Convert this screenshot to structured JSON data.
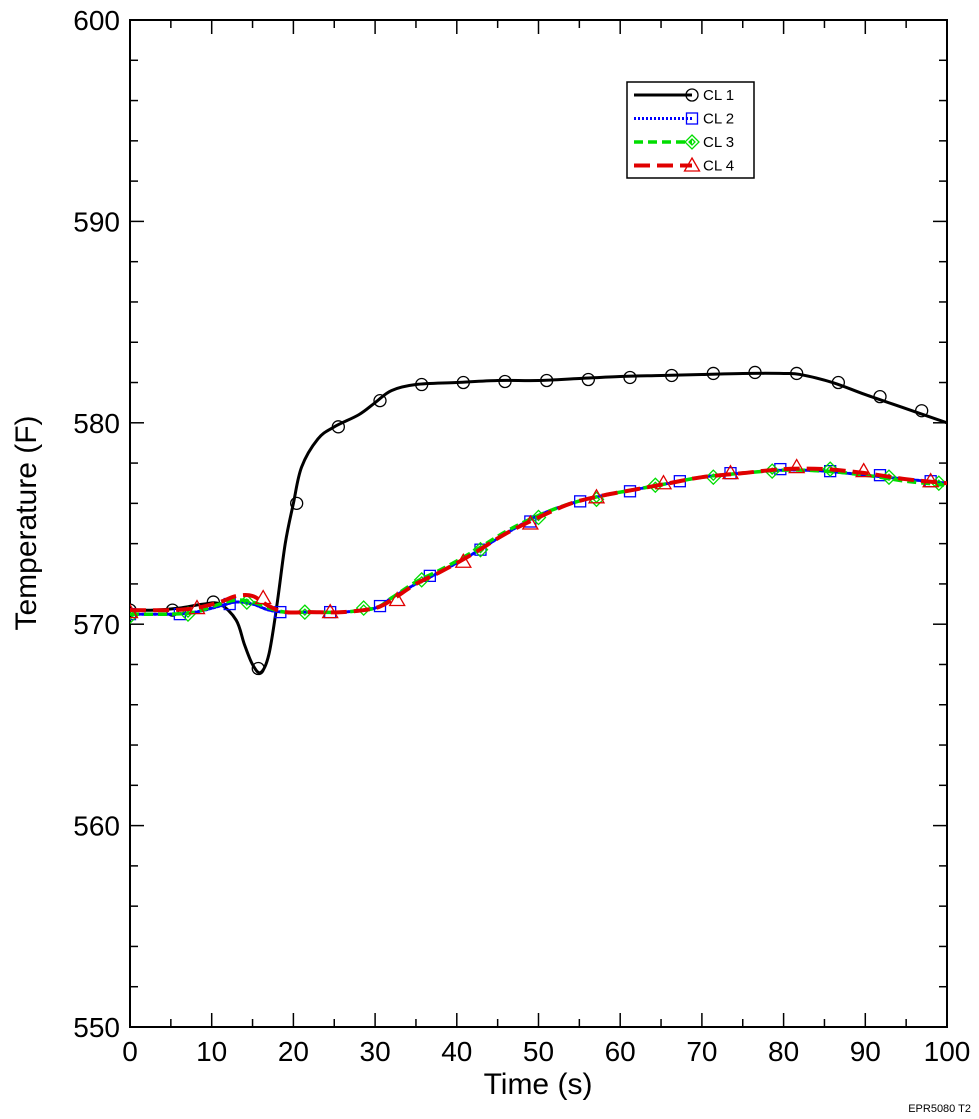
{
  "chart_data": {
    "type": "line",
    "title": "",
    "xlabel": "Time (s)",
    "ylabel": "Temperature (F)",
    "xlim": [
      0,
      100
    ],
    "ylim": [
      550,
      600
    ],
    "x_ticks": [
      0,
      10,
      20,
      30,
      40,
      50,
      60,
      70,
      80,
      90,
      100
    ],
    "y_ticks": [
      550,
      560,
      570,
      580,
      590,
      600
    ],
    "grid": false,
    "legend_position": "top-right",
    "footnote": "EPR5080 T2",
    "series": [
      {
        "name": "CL 1",
        "color": "#000000",
        "line_style": "solid",
        "marker": "circle",
        "points": [
          [
            0,
            570.7
          ],
          [
            3,
            570.7
          ],
          [
            6,
            570.8
          ],
          [
            9,
            571.0
          ],
          [
            11,
            571.0
          ],
          [
            13,
            570.2
          ],
          [
            14,
            569.0
          ],
          [
            15,
            568.0
          ],
          [
            16,
            567.6
          ],
          [
            17,
            568.5
          ],
          [
            18,
            571.0
          ],
          [
            19,
            574.0
          ],
          [
            20,
            576.0
          ],
          [
            21,
            577.8
          ],
          [
            23,
            579.2
          ],
          [
            25,
            579.8
          ],
          [
            28,
            580.4
          ],
          [
            30,
            581.0
          ],
          [
            32,
            581.6
          ],
          [
            35,
            581.9
          ],
          [
            40,
            582.0
          ],
          [
            45,
            582.1
          ],
          [
            50,
            582.1
          ],
          [
            55,
            582.2
          ],
          [
            60,
            582.3
          ],
          [
            65,
            582.35
          ],
          [
            70,
            582.4
          ],
          [
            75,
            582.45
          ],
          [
            80,
            582.45
          ],
          [
            82,
            582.4
          ],
          [
            86,
            582.0
          ],
          [
            90,
            581.4
          ],
          [
            95,
            580.7
          ],
          [
            100,
            580.0
          ]
        ],
        "marker_points": [
          [
            0,
            570.7
          ],
          [
            5.2,
            570.7
          ],
          [
            10.2,
            571.1
          ],
          [
            15.7,
            567.8
          ],
          [
            20.4,
            576.0
          ],
          [
            25.5,
            579.8
          ],
          [
            30.6,
            581.1
          ],
          [
            35.7,
            581.9
          ],
          [
            40.8,
            582.0
          ],
          [
            45.9,
            582.05
          ],
          [
            51.0,
            582.1
          ],
          [
            56.1,
            582.15
          ],
          [
            61.2,
            582.25
          ],
          [
            66.3,
            582.35
          ],
          [
            71.4,
            582.45
          ],
          [
            76.5,
            582.5
          ],
          [
            81.6,
            582.45
          ],
          [
            86.7,
            582.0
          ],
          [
            91.8,
            581.3
          ],
          [
            96.9,
            580.6
          ]
        ]
      },
      {
        "name": "CL 2",
        "color": "#0000ff",
        "line_style": "dotted",
        "marker": "square",
        "points": [
          [
            0,
            570.5
          ],
          [
            5,
            570.5
          ],
          [
            8,
            570.6
          ],
          [
            11,
            570.9
          ],
          [
            13,
            571.1
          ],
          [
            15,
            571.0
          ],
          [
            17,
            570.7
          ],
          [
            19,
            570.6
          ],
          [
            22,
            570.6
          ],
          [
            26,
            570.6
          ],
          [
            30,
            570.8
          ],
          [
            32,
            571.3
          ],
          [
            35,
            572.0
          ],
          [
            38,
            572.6
          ],
          [
            42,
            573.5
          ],
          [
            46,
            574.5
          ],
          [
            50,
            575.4
          ],
          [
            54,
            576.0
          ],
          [
            58,
            576.4
          ],
          [
            62,
            576.7
          ],
          [
            66,
            577.0
          ],
          [
            70,
            577.3
          ],
          [
            75,
            577.5
          ],
          [
            80,
            577.65
          ],
          [
            85,
            577.6
          ],
          [
            90,
            577.4
          ],
          [
            95,
            577.2
          ],
          [
            100,
            577.0
          ]
        ],
        "marker_points": [
          [
            0,
            570.5
          ],
          [
            6.1,
            570.5
          ],
          [
            12.2,
            571.0
          ],
          [
            18.4,
            570.6
          ],
          [
            24.5,
            570.6
          ],
          [
            30.6,
            570.9
          ],
          [
            36.7,
            572.4
          ],
          [
            42.9,
            573.7
          ],
          [
            49.0,
            575.1
          ],
          [
            55.1,
            576.1
          ],
          [
            61.2,
            576.6
          ],
          [
            67.3,
            577.1
          ],
          [
            73.5,
            577.5
          ],
          [
            79.6,
            577.7
          ],
          [
            85.7,
            577.6
          ],
          [
            91.8,
            577.4
          ],
          [
            98.0,
            577.1
          ]
        ]
      },
      {
        "name": "CL 3",
        "color": "#00dd00",
        "line_style": "dashed",
        "marker": "diamond",
        "points": [
          [
            0,
            570.5
          ],
          [
            5,
            570.5
          ],
          [
            8,
            570.6
          ],
          [
            11,
            571.0
          ],
          [
            13,
            571.2
          ],
          [
            15,
            571.1
          ],
          [
            17,
            570.8
          ],
          [
            19,
            570.6
          ],
          [
            22,
            570.6
          ],
          [
            26,
            570.6
          ],
          [
            30,
            570.8
          ],
          [
            32,
            571.3
          ],
          [
            35,
            572.1
          ],
          [
            38,
            572.7
          ],
          [
            42,
            573.6
          ],
          [
            46,
            574.6
          ],
          [
            50,
            575.4
          ],
          [
            54,
            576.0
          ],
          [
            58,
            576.4
          ],
          [
            62,
            576.7
          ],
          [
            66,
            577.0
          ],
          [
            70,
            577.3
          ],
          [
            75,
            577.5
          ],
          [
            80,
            577.65
          ],
          [
            85,
            577.6
          ],
          [
            90,
            577.4
          ],
          [
            95,
            577.1
          ],
          [
            100,
            576.9
          ]
        ],
        "marker_points": [
          [
            0,
            570.4
          ],
          [
            7.1,
            570.5
          ],
          [
            14.3,
            571.1
          ],
          [
            21.4,
            570.6
          ],
          [
            28.6,
            570.8
          ],
          [
            35.7,
            572.2
          ],
          [
            42.9,
            573.7
          ],
          [
            50.0,
            575.3
          ],
          [
            57.1,
            576.2
          ],
          [
            64.3,
            576.9
          ],
          [
            71.4,
            577.3
          ],
          [
            78.6,
            577.6
          ],
          [
            85.7,
            577.7
          ],
          [
            92.9,
            577.3
          ],
          [
            99.0,
            577.0
          ]
        ]
      },
      {
        "name": "CL 4",
        "color": "#e00000",
        "line_style": "long-dashed",
        "marker": "triangle",
        "points": [
          [
            0,
            570.7
          ],
          [
            5,
            570.7
          ],
          [
            8,
            570.8
          ],
          [
            11,
            571.1
          ],
          [
            13,
            571.4
          ],
          [
            15,
            571.4
          ],
          [
            17,
            570.9
          ],
          [
            19,
            570.6
          ],
          [
            22,
            570.6
          ],
          [
            26,
            570.6
          ],
          [
            30,
            570.8
          ],
          [
            32,
            571.2
          ],
          [
            35,
            572.0
          ],
          [
            38,
            572.6
          ],
          [
            42,
            573.5
          ],
          [
            46,
            574.5
          ],
          [
            50,
            575.3
          ],
          [
            54,
            576.0
          ],
          [
            58,
            576.4
          ],
          [
            62,
            576.7
          ],
          [
            66,
            577.0
          ],
          [
            70,
            577.3
          ],
          [
            75,
            577.5
          ],
          [
            80,
            577.7
          ],
          [
            85,
            577.7
          ],
          [
            90,
            577.5
          ],
          [
            95,
            577.2
          ],
          [
            100,
            577.0
          ]
        ],
        "marker_points": [
          [
            0,
            570.6
          ],
          [
            8.2,
            570.8
          ],
          [
            16.3,
            571.3
          ],
          [
            24.5,
            570.6
          ],
          [
            32.7,
            571.2
          ],
          [
            40.8,
            573.1
          ],
          [
            49.0,
            575.0
          ],
          [
            57.1,
            576.3
          ],
          [
            65.3,
            577.0
          ],
          [
            73.5,
            577.5
          ],
          [
            81.6,
            577.8
          ],
          [
            89.8,
            577.6
          ],
          [
            98.0,
            577.1
          ]
        ]
      }
    ]
  }
}
